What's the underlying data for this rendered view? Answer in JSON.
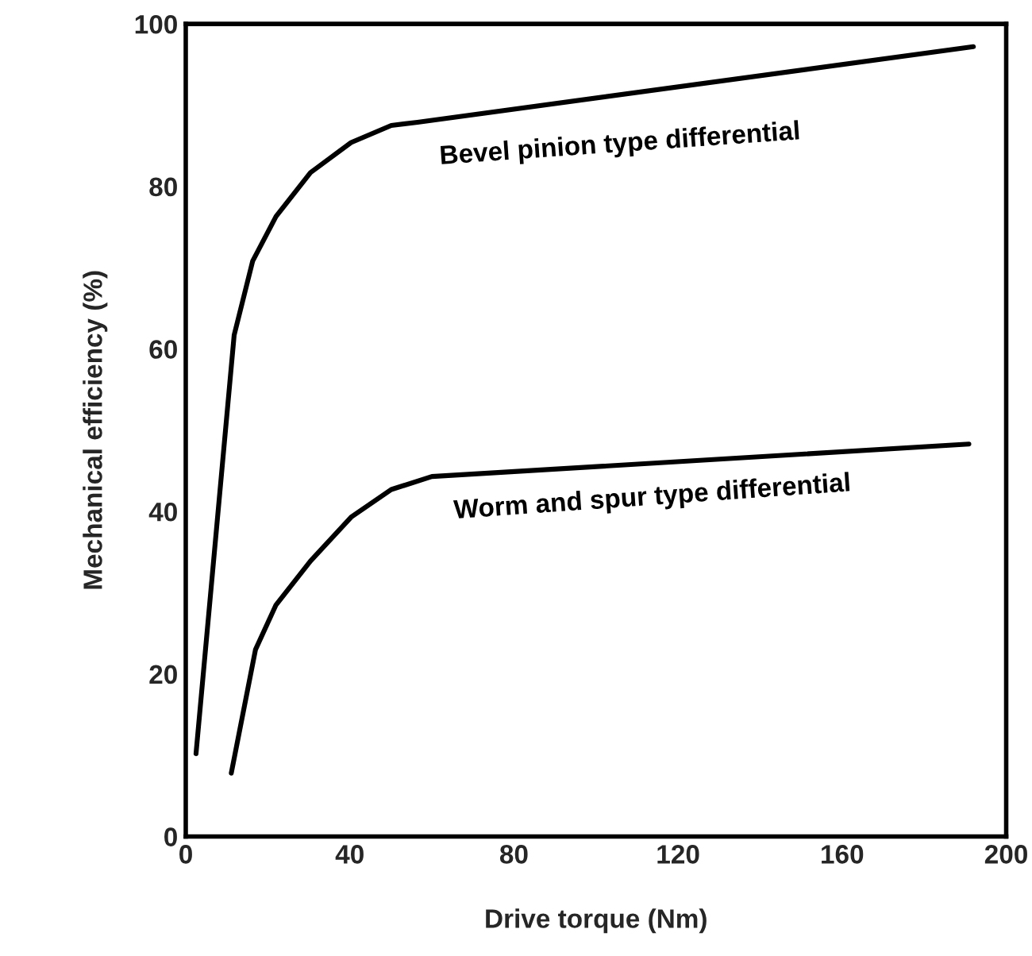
{
  "chart_data": {
    "type": "line",
    "xlabel": "Drive torque (Nm)",
    "ylabel": "Mechanical efficiency (%)",
    "xlim": [
      0,
      200
    ],
    "ylim": [
      0,
      100
    ],
    "xticks": [
      0,
      40,
      80,
      120,
      160,
      200
    ],
    "yticks": [
      0,
      20,
      40,
      60,
      80,
      100
    ],
    "grid": false,
    "legend": false,
    "marker": "none",
    "line_style": "solid",
    "series": [
      {
        "name": "Bevel pinion type differential",
        "color": "#000000",
        "x": [
          2.5,
          11.8,
          16.3,
          22,
          30.4,
          40.3,
          50.1,
          56.5,
          192
        ],
        "values": [
          10.2,
          61.7,
          70.8,
          76.3,
          81.7,
          85.4,
          87.5,
          87.9,
          97.2
        ]
      },
      {
        "name": "Worm and spur type differential",
        "color": "#000000",
        "x": [
          11.1,
          17,
          22,
          30.4,
          40.3,
          50.1,
          60,
          190.9
        ],
        "values": [
          7.8,
          23,
          28.5,
          33.9,
          39.3,
          42.7,
          44.3,
          48.3
        ]
      }
    ]
  }
}
